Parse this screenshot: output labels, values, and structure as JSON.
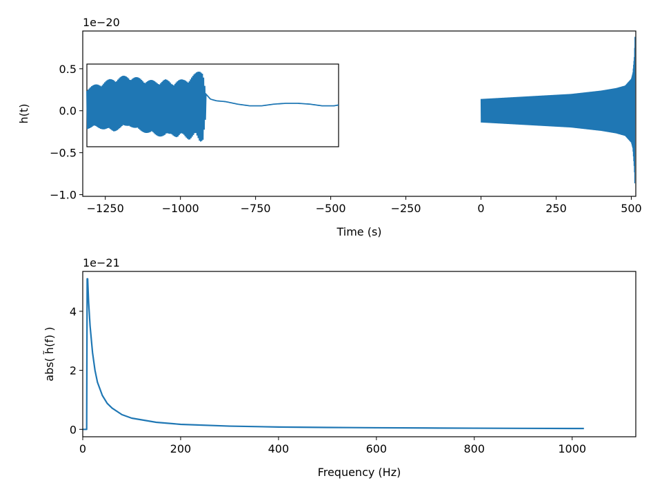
{
  "colors": {
    "series": "#1f77b4",
    "axes": "#000000",
    "background": "#ffffff"
  },
  "chart_data": [
    {
      "type": "line",
      "title": "",
      "xlabel": "Time (s)",
      "ylabel": "h(t)",
      "offset_text": "1e−20",
      "xlim": [
        -1325,
        515
      ],
      "ylim": [
        -1.02,
        0.95
      ],
      "xticks": [
        -1250,
        -1000,
        -750,
        -500,
        -250,
        0,
        250,
        500
      ],
      "xtick_labels": [
        "−1250",
        "−1000",
        "−750",
        "−500",
        "−250",
        "0",
        "250",
        "500"
      ],
      "yticks": [
        -1.0,
        -0.5,
        0.0,
        0.5
      ],
      "ytick_labels": [
        "−1.0",
        "−0.5",
        "0.0",
        "0.5"
      ],
      "grid": false,
      "series": [
        {
          "x": [
            0,
            50,
            100,
            150,
            200,
            250,
            300,
            350,
            400,
            450,
            480,
            500,
            505,
            510,
            512
          ],
          "upper": [
            0.14,
            0.15,
            0.16,
            0.17,
            0.18,
            0.19,
            0.2,
            0.22,
            0.24,
            0.27,
            0.3,
            0.38,
            0.45,
            0.65,
            0.88
          ],
          "lower": [
            -0.14,
            -0.15,
            -0.16,
            -0.17,
            -0.18,
            -0.19,
            -0.2,
            -0.22,
            -0.24,
            -0.27,
            -0.3,
            -0.38,
            -0.45,
            -0.7,
            -0.93
          ]
        }
      ],
      "inset": {
        "xlim": [
          -1320,
          -485
        ],
        "ylim": [
          -0.43,
          0.56
        ],
        "chirp_envelope": {
          "x": [
            -1320,
            -1290,
            -1260,
            -1230,
            -1200,
            -1180,
            -1150,
            -1120,
            -1090,
            -1060,
            -1040,
            -1020,
            -1000,
            -980,
            -960,
            -945,
            -935,
            -925
          ],
          "upper": [
            0.28,
            0.32,
            0.36,
            0.4,
            0.42,
            0.43,
            0.4,
            0.38,
            0.36,
            0.38,
            0.35,
            0.37,
            0.38,
            0.4,
            0.45,
            0.5,
            0.52,
            0.2
          ],
          "lower": [
            -0.22,
            -0.2,
            -0.23,
            -0.25,
            -0.2,
            -0.18,
            -0.24,
            -0.27,
            -0.3,
            -0.32,
            -0.28,
            -0.33,
            -0.3,
            -0.35,
            -0.3,
            -0.38,
            -0.35,
            -0.05
          ]
        },
        "ringdown": {
          "x": [
            -925,
            -910,
            -890,
            -860,
            -820,
            -780,
            -740,
            -700,
            -660,
            -620,
            -580,
            -540,
            -500,
            -485
          ],
          "y": [
            0.2,
            0.14,
            0.12,
            0.11,
            0.08,
            0.06,
            0.06,
            0.08,
            0.09,
            0.09,
            0.08,
            0.06,
            0.06,
            0.07
          ]
        }
      }
    },
    {
      "type": "line",
      "title": "",
      "xlabel": "Frequency (Hz)",
      "ylabel": "abs( h̃(f) )",
      "offset_text": "1e−21",
      "xlim": [
        0,
        1130
      ],
      "ylim": [
        -0.25,
        5.35
      ],
      "xticks": [
        0,
        200,
        400,
        600,
        800,
        1000
      ],
      "xtick_labels": [
        "0",
        "200",
        "400",
        "600",
        "800",
        "1000"
      ],
      "yticks": [
        0,
        2,
        4
      ],
      "ytick_labels": [
        "0",
        "2",
        "4"
      ],
      "grid": false,
      "series": [
        {
          "x": [
            0,
            8,
            9,
            10,
            12,
            15,
            20,
            25,
            30,
            40,
            50,
            60,
            80,
            100,
            150,
            200,
            300,
            400,
            500,
            600,
            700,
            800,
            900,
            1000,
            1024
          ],
          "y": [
            0,
            0,
            5.1,
            5.1,
            4.3,
            3.5,
            2.6,
            2.0,
            1.6,
            1.15,
            0.88,
            0.72,
            0.5,
            0.38,
            0.24,
            0.17,
            0.11,
            0.08,
            0.065,
            0.055,
            0.047,
            0.04,
            0.035,
            0.03,
            0.03
          ]
        }
      ]
    }
  ]
}
